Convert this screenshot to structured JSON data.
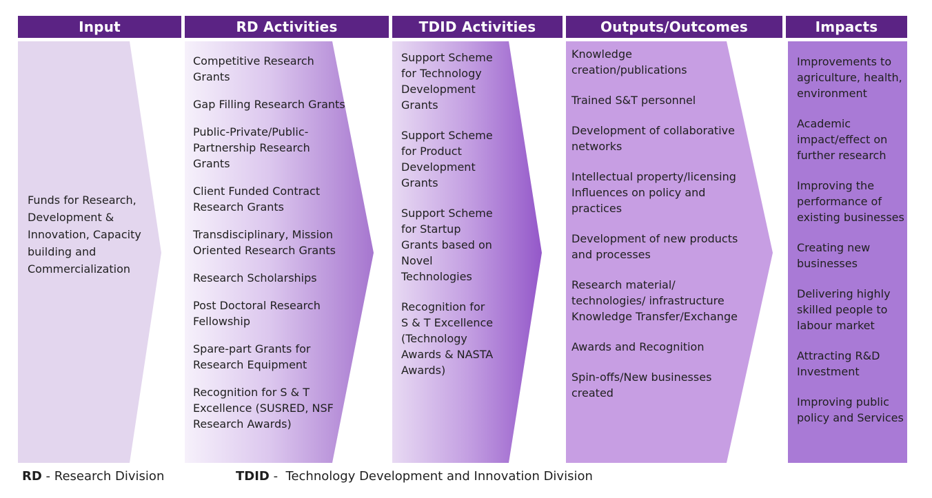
{
  "headers": {
    "input": "Input",
    "rd": "RD Activities",
    "tdid": "TDID Activities",
    "outputs": "Outputs/Outcomes",
    "impacts": "Impacts"
  },
  "input": {
    "lines": [
      "Funds for Research,",
      "Development &",
      "Innovation, Capacity",
      "building and",
      "Commercialization"
    ]
  },
  "rd_items": [
    [
      "Competitive Research",
      "Grants"
    ],
    [
      "Gap Filling Research Grants"
    ],
    [
      "Public-Private/Public-",
      "Partnership Research",
      "Grants"
    ],
    [
      "Client Funded Contract",
      "Research Grants"
    ],
    [
      "Transdisciplinary, Mission",
      "Oriented Research Grants"
    ],
    [
      "Research Scholarships"
    ],
    [
      "Post Doctoral Research",
      "Fellowship"
    ],
    [
      "Spare-part Grants for",
      "Research Equipment"
    ],
    [
      "Recognition for S & T",
      "Excellence (SUSRED, NSF",
      "Research Awards)"
    ]
  ],
  "tdid_items": [
    [
      "Support Scheme",
      "for Technology",
      "Development",
      "Grants"
    ],
    [
      "Support Scheme",
      "for Product",
      "Development",
      "Grants"
    ],
    [
      "Support Scheme",
      "for Startup",
      "Grants based on",
      "Novel",
      "Technologies"
    ],
    [
      "Recognition for",
      "S & T Excellence",
      "(Technology",
      "Awards & NASTA",
      "Awards)"
    ]
  ],
  "output_items": [
    [
      "Knowledge",
      "creation/publications"
    ],
    [
      "Trained S&T personnel"
    ],
    [
      "Development of collaborative",
      "networks"
    ],
    [
      "Intellectual property/licensing",
      "Influences on policy and",
      "practices"
    ],
    [
      "Development of new products",
      "and processes"
    ],
    [
      "Research material/",
      "technologies/ infrastructure",
      "Knowledge Transfer/Exchange"
    ],
    [
      "Awards and Recognition"
    ],
    [
      "Spin-offs/New businesses",
      "created"
    ]
  ],
  "impact_items": [
    [
      "Improvements to",
      "agriculture, health,",
      "environment"
    ],
    [
      "Academic",
      "impact/effect on",
      "further research"
    ],
    [
      "Improving the",
      "performance of",
      "existing businesses"
    ],
    [
      "Creating new",
      "businesses"
    ],
    [
      "Delivering highly",
      "skilled people to",
      "labour market"
    ],
    [
      "Attracting R&D",
      "Investment"
    ],
    [
      "Improving public",
      "policy and Services"
    ]
  ],
  "legend": {
    "rd_abbr": "RD",
    "rd_text": " - Research Division",
    "tdid_abbr": "TDID",
    "tdid_text": " -  Technology Development and Innovation Division"
  },
  "colors": {
    "header": "#5b2384",
    "input_fill": "#e3d6ee",
    "rd_light": "#f5f0fa",
    "rd_dark": "#a878d0",
    "tdid_light": "#e6d6f2",
    "tdid_dark": "#9a5ccc",
    "outputs_fill": "#c79ee3",
    "impacts_fill": "#a97ad6"
  }
}
